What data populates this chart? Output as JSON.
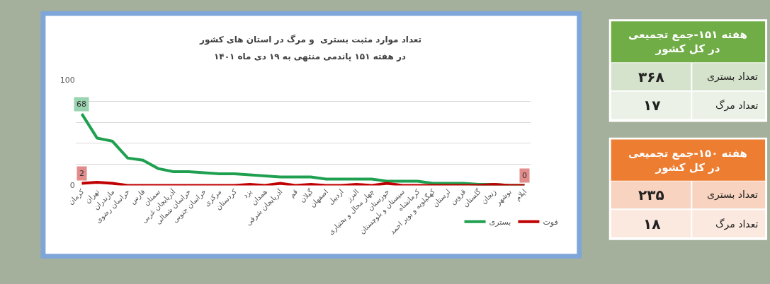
{
  "chart_data": [
    {
      "type": "line",
      "title": "تعداد موارد مثبت بستری  و مرگ در استان های کشور",
      "subtitle": "در هفته ۱۵۱ پاندمی منتهی به ۱۹ دی ماه ۱۴۰۱",
      "categories": [
        "کرمان",
        "تهران",
        "مازندران",
        "خراسان رضوی",
        "فارس",
        "سمنان",
        "آذربایجان غربی",
        "خراسان شمالی",
        "خراسان جنوبی",
        "مرکزی",
        "کردستان",
        "یزد",
        "همدان",
        "آذربایجان شرقی",
        "قم",
        "گیلان",
        "اصفهان",
        "اردبیل",
        "البرز",
        "چهار محال و بختیاری",
        "خوزستان",
        "سیستان و بلوچستان",
        "کرمانشاه",
        "کهگیلویه و بویر احمد",
        "لرستان",
        "قزوین",
        "گلستان",
        "زنجان",
        "بوشهر",
        "ایلام"
      ],
      "series": [
        {
          "name": "بستری",
          "color": "#1fa050",
          "values": [
            68,
            45,
            42,
            26,
            24,
            16,
            13,
            13,
            12,
            11,
            11,
            10,
            9,
            8,
            8,
            8,
            6,
            6,
            6,
            6,
            4,
            4,
            4,
            2,
            2,
            2,
            1,
            1,
            0,
            0
          ],
          "value_labels": [
            "68",
            null,
            null,
            null,
            null,
            null,
            null,
            null,
            null,
            null,
            null,
            null,
            null,
            null,
            null,
            null,
            null,
            null,
            null,
            null,
            null,
            null,
            null,
            null,
            null,
            null,
            null,
            null,
            null,
            null
          ]
        },
        {
          "name": "فوت",
          "color": "#c00000",
          "values": [
            2,
            3,
            2,
            0,
            0,
            0,
            0,
            0,
            0,
            0,
            0,
            1,
            0,
            2,
            0,
            1,
            0,
            0,
            1,
            0,
            2,
            0,
            0,
            0,
            0,
            0,
            0,
            1,
            0,
            0
          ],
          "value_labels": [
            "2",
            null,
            null,
            null,
            null,
            null,
            null,
            null,
            null,
            null,
            null,
            null,
            null,
            null,
            null,
            null,
            null,
            null,
            null,
            null,
            null,
            null,
            null,
            null,
            null,
            null,
            null,
            null,
            null,
            "0"
          ]
        }
      ],
      "ylim": [
        0,
        100
      ],
      "yticks": [
        0,
        {
          "value": 20,
          "label": null
        },
        {
          "value": 40,
          "label": null
        },
        {
          "value": 60,
          "label": null
        },
        {
          "value": 80,
          "label": null
        },
        100
      ],
      "grid": "y",
      "legend": "bottom right",
      "marker": "none",
      "line_style": "solid"
    },
    {
      "type": "other",
      "title": "هفته ۱۵۱-جمع تجمیعی\nدر کل کشور",
      "color": "#70ad47",
      "colors": [
        "#d5e3cc",
        "#ebf1e6"
      ],
      "categories": [
        "تعداد بستری",
        "تعداد مرگ"
      ],
      "value_labels": [
        "۳۶۸",
        "۱۷"
      ]
    },
    {
      "type": "other",
      "title": "هفته ۱۵۰-جمع تجمیعی\nدر کل کشور",
      "color": "#ed7d31",
      "colors": [
        "#f8d3c0",
        "#fbe9df"
      ],
      "categories": [
        "تعداد بستری",
        "تعداد مرگ"
      ],
      "value_labels": [
        "۲۳۵",
        "۱۸"
      ]
    }
  ]
}
